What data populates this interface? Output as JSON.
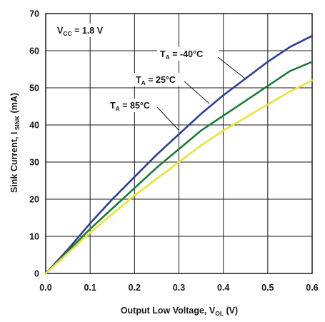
{
  "chart_data": {
    "type": "line",
    "xlabel": {
      "main": "Output Low Voltage, V",
      "sub": "OL",
      "unit": " (V)"
    },
    "ylabel": {
      "main": "Sink Current, I",
      "sub": " SINK",
      "unit": " (mA)"
    },
    "xlim": [
      0,
      0.6
    ],
    "ylim": [
      0,
      70
    ],
    "x_ticks": [
      "0.0",
      "0.1",
      "0.2",
      "0.3",
      "0.4",
      "0.5",
      "0.6"
    ],
    "y_ticks": [
      "0",
      "10",
      "20",
      "30",
      "40",
      "50",
      "60",
      "70"
    ],
    "grid": true,
    "annotation": {
      "main": "V",
      "sub": "CC",
      "rest": " = 1.8 V"
    },
    "series": [
      {
        "name": "T_A = -40°C",
        "label": {
          "main": "T",
          "sub": "A",
          "rest": " = -40°C"
        },
        "color": "#2e3f8f",
        "x": [
          0,
          0.05,
          0.1,
          0.15,
          0.2,
          0.25,
          0.3,
          0.35,
          0.4,
          0.45,
          0.5,
          0.55,
          0.6
        ],
        "y": [
          0,
          6.5,
          13.5,
          20,
          26,
          32,
          37.5,
          43,
          48,
          52.5,
          57,
          61,
          64
        ]
      },
      {
        "name": "T_A = 25°C",
        "label": {
          "main": "T",
          "sub": "A",
          "rest": " = 25°C"
        },
        "color": "#1f7a3a",
        "x": [
          0,
          0.05,
          0.1,
          0.15,
          0.2,
          0.25,
          0.3,
          0.35,
          0.4,
          0.45,
          0.5,
          0.55,
          0.6
        ],
        "y": [
          0,
          6,
          12,
          17.5,
          23,
          28.5,
          33.5,
          38.5,
          42.5,
          46.5,
          50.5,
          54.5,
          57
        ]
      },
      {
        "name": "T_A = 85°C",
        "label": {
          "main": "T",
          "sub": "A",
          "rest": " = 85°C"
        },
        "color": "#e8e43a",
        "x": [
          0,
          0.05,
          0.1,
          0.15,
          0.2,
          0.25,
          0.3,
          0.35,
          0.4,
          0.45,
          0.5,
          0.55,
          0.6
        ],
        "y": [
          0,
          5.5,
          11,
          16,
          21,
          25.5,
          30,
          34.5,
          38.5,
          42,
          45.5,
          49,
          52
        ]
      }
    ]
  }
}
